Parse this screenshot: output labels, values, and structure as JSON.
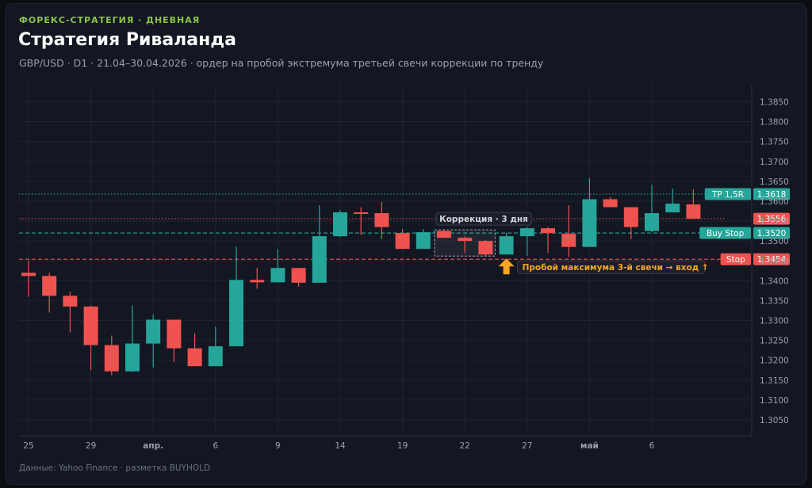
{
  "header": {
    "kicker": "ФОРЕКС-СТРАТЕГИЯ · ДНЕВНАЯ",
    "title": "Стратегия Риваланда",
    "subtitle": "GBP/USD · D1 · 21.04–30.04.2026 · ордер на пробой экстремума третьей свечи коррекции по тренду"
  },
  "footer": "Данные: Yahoo Finance · разметка BUYHOLD",
  "colors": {
    "up": "#26a69a",
    "down": "#ef5350",
    "tp": "#26a69a",
    "entry": "#26a69a",
    "stop": "#ef5350",
    "current": "#ef5350",
    "grid": "#1e2330",
    "annotation": "#f6a623"
  },
  "chart_data": {
    "type": "candlestick",
    "title": "Стратегия Риваланда",
    "ylim": [
      1.301,
      1.3895
    ],
    "y_ticks": [
      "1.3050",
      "1.3100",
      "1.3150",
      "1.3200",
      "1.3250",
      "1.3300",
      "1.3350",
      "1.3400",
      "1.3450",
      "1.3500",
      "1.3550",
      "1.3600",
      "1.3650",
      "1.3700",
      "1.3750",
      "1.3800",
      "1.3850"
    ],
    "x_ticks": [
      {
        "label": "25",
        "index": 0
      },
      {
        "label": "29",
        "index": 3
      },
      {
        "label": "апр.",
        "index": 6,
        "bold": true
      },
      {
        "label": "6",
        "index": 9
      },
      {
        "label": "9",
        "index": 12
      },
      {
        "label": "14",
        "index": 15
      },
      {
        "label": "19",
        "index": 18
      },
      {
        "label": "22",
        "index": 21
      },
      {
        "label": "27",
        "index": 24
      },
      {
        "label": "май",
        "index": 27,
        "bold": true
      },
      {
        "label": "6",
        "index": 30
      }
    ],
    "candles": [
      {
        "o": 1.342,
        "h": 1.345,
        "l": 1.336,
        "c": 1.3412
      },
      {
        "o": 1.3412,
        "h": 1.342,
        "l": 1.332,
        "c": 1.3362
      },
      {
        "o": 1.3362,
        "h": 1.3372,
        "l": 1.327,
        "c": 1.3335
      },
      {
        "o": 1.3335,
        "h": 1.3338,
        "l": 1.3175,
        "c": 1.3238
      },
      {
        "o": 1.3238,
        "h": 1.3262,
        "l": 1.3162,
        "c": 1.3172
      },
      {
        "o": 1.3172,
        "h": 1.3338,
        "l": 1.317,
        "c": 1.3242
      },
      {
        "o": 1.3242,
        "h": 1.3315,
        "l": 1.3182,
        "c": 1.3302
      },
      {
        "o": 1.3302,
        "h": 1.3302,
        "l": 1.3195,
        "c": 1.323
      },
      {
        "o": 1.323,
        "h": 1.3268,
        "l": 1.3185,
        "c": 1.3185
      },
      {
        "o": 1.3185,
        "h": 1.3285,
        "l": 1.3185,
        "c": 1.3235
      },
      {
        "o": 1.3235,
        "h": 1.3485,
        "l": 1.3235,
        "c": 1.3402
      },
      {
        "o": 1.3402,
        "h": 1.3432,
        "l": 1.338,
        "c": 1.3396
      },
      {
        "o": 1.3396,
        "h": 1.348,
        "l": 1.3396,
        "c": 1.3432
      },
      {
        "o": 1.3432,
        "h": 1.3432,
        "l": 1.3385,
        "c": 1.3395
      },
      {
        "o": 1.3395,
        "h": 1.359,
        "l": 1.3395,
        "c": 1.3512
      },
      {
        "o": 1.3512,
        "h": 1.3578,
        "l": 1.351,
        "c": 1.3572
      },
      {
        "o": 1.3572,
        "h": 1.3585,
        "l": 1.3515,
        "c": 1.357
      },
      {
        "o": 1.357,
        "h": 1.3598,
        "l": 1.3505,
        "c": 1.3535
      },
      {
        "o": 1.352,
        "h": 1.353,
        "l": 1.348,
        "c": 1.348
      },
      {
        "o": 1.348,
        "h": 1.353,
        "l": 1.348,
        "c": 1.3522
      },
      {
        "o": 1.3525,
        "h": 1.3528,
        "l": 1.351,
        "c": 1.3508
      },
      {
        "o": 1.3508,
        "h": 1.3512,
        "l": 1.347,
        "c": 1.35
      },
      {
        "o": 1.35,
        "h": 1.3502,
        "l": 1.3462,
        "c": 1.3466
      },
      {
        "o": 1.3466,
        "h": 1.352,
        "l": 1.3466,
        "c": 1.3512
      },
      {
        "o": 1.3512,
        "h": 1.3535,
        "l": 1.3462,
        "c": 1.3532
      },
      {
        "o": 1.3532,
        "h": 1.3535,
        "l": 1.347,
        "c": 1.352
      },
      {
        "o": 1.3518,
        "h": 1.359,
        "l": 1.346,
        "c": 1.3485
      },
      {
        "o": 1.3485,
        "h": 1.3658,
        "l": 1.3485,
        "c": 1.3605
      },
      {
        "o": 1.3605,
        "h": 1.361,
        "l": 1.3585,
        "c": 1.3585
      },
      {
        "o": 1.3585,
        "h": 1.3585,
        "l": 1.3505,
        "c": 1.3535
      },
      {
        "o": 1.3525,
        "h": 1.3642,
        "l": 1.3522,
        "c": 1.357
      },
      {
        "o": 1.3572,
        "h": 1.3632,
        "l": 1.3572,
        "c": 1.3594
      },
      {
        "o": 1.3592,
        "h": 1.363,
        "l": 1.3555,
        "c": 1.3556
      }
    ],
    "levels": [
      {
        "name": "TP 1,5R",
        "value": 1.3618,
        "value_label": "1.3618",
        "style": "dotted",
        "color": "#26a69a"
      },
      {
        "name": "",
        "value": 1.3556,
        "value_label": "1.3556",
        "style": "dotted",
        "color": "#ef5350"
      },
      {
        "name": "Buy Stop",
        "value": 1.352,
        "value_label": "1.3520",
        "style": "dashed",
        "color": "#26a69a"
      },
      {
        "name": "Stop",
        "value": 1.3454,
        "value_label": "1.3454",
        "style": "dashed",
        "color": "#ef5350"
      }
    ],
    "correction_box": {
      "from_index": 20,
      "to_index": 22,
      "low": 1.3462,
      "high": 1.3528,
      "label": "Коррекция · 3 дня"
    },
    "entry_annotation": {
      "index": 23,
      "value": 1.3462,
      "label": "Пробой максимума 3-й свечи → вход ↑"
    },
    "grid": true
  }
}
